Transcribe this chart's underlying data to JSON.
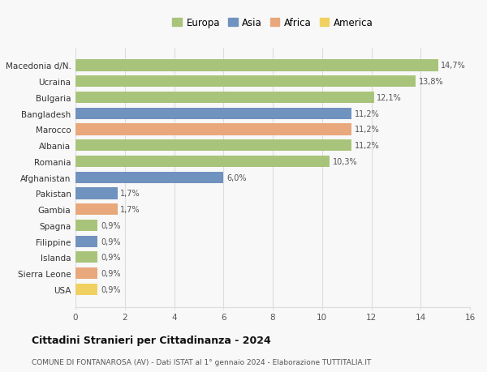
{
  "countries": [
    "Macedonia d/N.",
    "Ucraina",
    "Bulgaria",
    "Bangladesh",
    "Marocco",
    "Albania",
    "Romania",
    "Afghanistan",
    "Pakistan",
    "Gambia",
    "Spagna",
    "Filippine",
    "Islanda",
    "Sierra Leone",
    "USA"
  ],
  "values": [
    14.7,
    13.8,
    12.1,
    11.2,
    11.2,
    11.2,
    10.3,
    6.0,
    1.7,
    1.7,
    0.9,
    0.9,
    0.9,
    0.9,
    0.9
  ],
  "labels": [
    "14,7%",
    "13,8%",
    "12,1%",
    "11,2%",
    "11,2%",
    "11,2%",
    "10,3%",
    "6,0%",
    "1,7%",
    "1,7%",
    "0,9%",
    "0,9%",
    "0,9%",
    "0,9%",
    "0,9%"
  ],
  "continents": [
    "Europa",
    "Europa",
    "Europa",
    "Asia",
    "Africa",
    "Europa",
    "Europa",
    "Asia",
    "Asia",
    "Africa",
    "Europa",
    "Asia",
    "Europa",
    "Africa",
    "America"
  ],
  "continent_colors": {
    "Europa": "#a8c47a",
    "Asia": "#7092be",
    "Africa": "#e8a87c",
    "America": "#f0d060"
  },
  "legend_order": [
    "Europa",
    "Asia",
    "Africa",
    "America"
  ],
  "xlim": [
    0,
    16
  ],
  "xticks": [
    0,
    2,
    4,
    6,
    8,
    10,
    12,
    14,
    16
  ],
  "title": "Cittadini Stranieri per Cittadinanza - 2024",
  "subtitle": "COMUNE DI FONTANAROSA (AV) - Dati ISTAT al 1° gennaio 2024 - Elaborazione TUTTITALIA.IT",
  "background_color": "#f8f8f8",
  "grid_color": "#dddddd"
}
